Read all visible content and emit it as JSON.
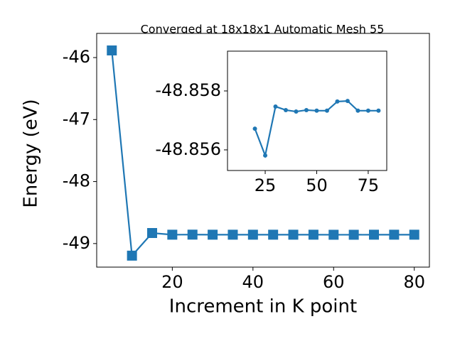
{
  "chart_data": [
    {
      "type": "line",
      "title": "Converged at 18x18x1 Automatic Mesh 55",
      "xlabel": "Increment in K point",
      "ylabel": "Energy (eV)",
      "x": [
        5,
        10,
        15,
        20,
        25,
        30,
        35,
        40,
        45,
        50,
        55,
        60,
        65,
        70,
        75,
        80
      ],
      "series": [
        {
          "color": "#1f77b4",
          "marker": "square",
          "values": [
            -45.885,
            -49.195,
            -48.83,
            -48.857,
            -48.856,
            -48.857,
            -48.857,
            -48.857,
            -48.857,
            -48.857,
            -48.857,
            -48.858,
            -48.858,
            -48.857,
            -48.857,
            -48.857
          ]
        }
      ],
      "xlim": [
        1.25,
        83.75
      ],
      "ylim": [
        -49.38,
        -45.61
      ],
      "xticks": [
        20,
        40,
        60,
        80
      ],
      "yticks": [
        -49,
        -48,
        -47,
        -46
      ]
    },
    {
      "type": "line",
      "x": [
        20,
        25,
        30,
        35,
        40,
        45,
        50,
        55,
        60,
        65,
        70,
        75,
        80
      ],
      "series": [
        {
          "color": "#1f77b4",
          "marker": "circle",
          "values": [
            -48.85672,
            -48.85581,
            -48.85747,
            -48.85735,
            -48.8573,
            -48.85735,
            -48.85733,
            -48.85733,
            -48.85764,
            -48.85766,
            -48.85733,
            -48.85733,
            -48.85733
          ]
        }
      ],
      "xlim": [
        6.7,
        84
      ],
      "ylim": [
        -48.8553,
        -48.85935
      ],
      "xticks": [
        25,
        50,
        75
      ],
      "yticks": [
        -48.858,
        -48.856
      ]
    }
  ]
}
